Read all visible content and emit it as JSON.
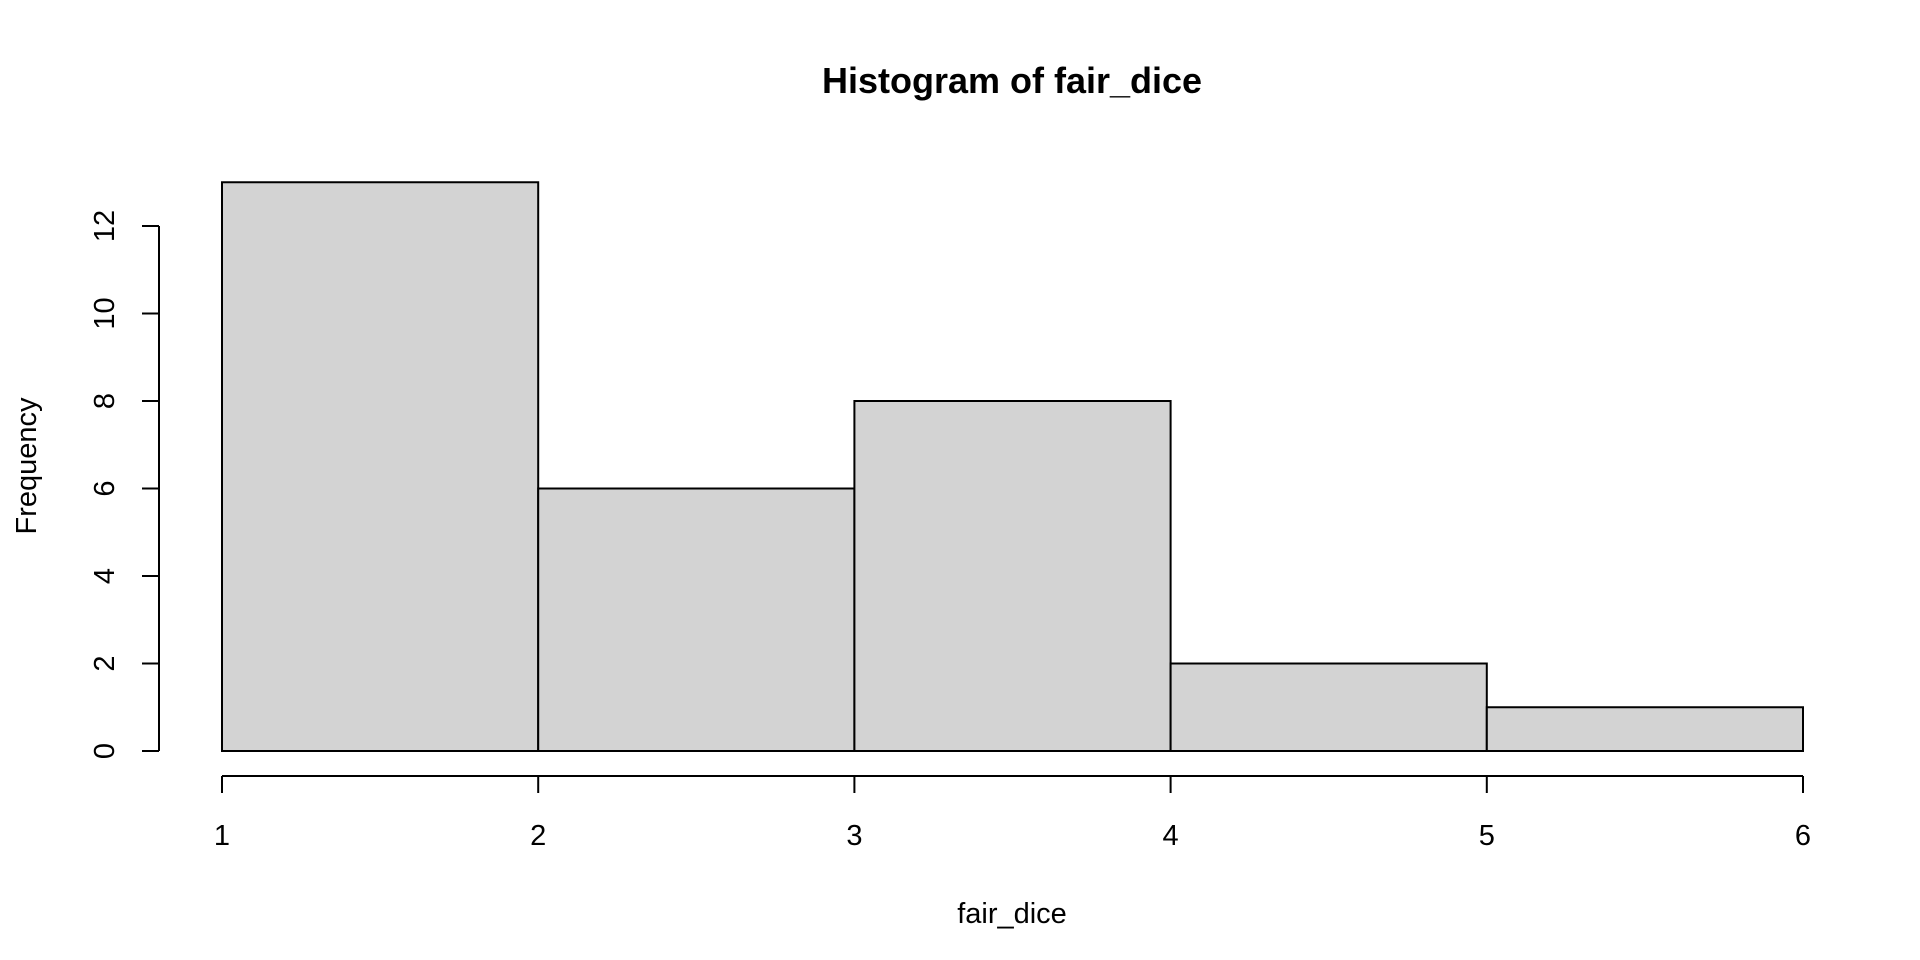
{
  "chart_data": {
    "type": "bar",
    "title": "Histogram of fair_dice",
    "xlabel": "fair_dice",
    "ylabel": "Frequency",
    "bins": [
      {
        "start": 1,
        "end": 2,
        "value": 13
      },
      {
        "start": 2,
        "end": 3,
        "value": 6
      },
      {
        "start": 3,
        "end": 4,
        "value": 8
      },
      {
        "start": 4,
        "end": 5,
        "value": 2
      },
      {
        "start": 5,
        "end": 6,
        "value": 1
      }
    ],
    "xlim": [
      1,
      6
    ],
    "ylim": [
      0,
      13
    ],
    "x_ticks": [
      1,
      2,
      3,
      4,
      5,
      6
    ],
    "y_ticks": [
      0,
      2,
      4,
      6,
      8,
      10,
      12
    ],
    "bar_color": "#d3d3d3",
    "grid": false,
    "legend": "none"
  }
}
